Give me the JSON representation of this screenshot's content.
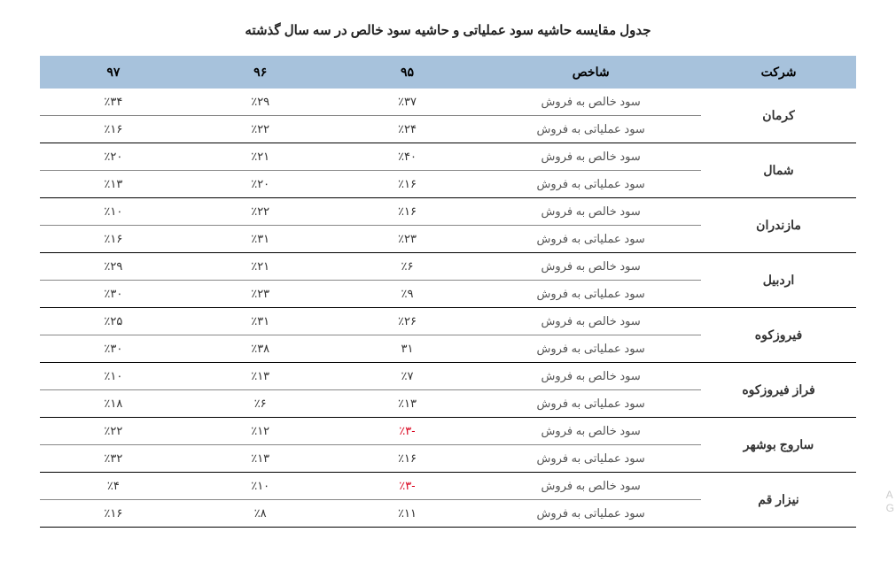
{
  "title": "جدول مقایسه حاشیه سود عملیاتی و حاشیه سود خالص در سه سال گذشته",
  "columns": {
    "company": "شرکت",
    "metric": "شاخص",
    "y95": "۹۵",
    "y96": "۹۶",
    "y97": "۹۷"
  },
  "metrics": {
    "net": "سود خالص به فروش",
    "op": "سود عملیاتی به فروش"
  },
  "companies": [
    {
      "name": "کرمان",
      "rows": [
        {
          "metric_key": "net",
          "y95": "٪۳۷",
          "y96": "٪۲۹",
          "y97": "٪۳۴"
        },
        {
          "metric_key": "op",
          "y95": "٪۲۴",
          "y96": "٪۲۲",
          "y97": "٪۱۶"
        }
      ]
    },
    {
      "name": "شمال",
      "rows": [
        {
          "metric_key": "net",
          "y95": "٪۴۰",
          "y96": "٪۲۱",
          "y97": "٪۲۰"
        },
        {
          "metric_key": "op",
          "y95": "٪۱۶",
          "y96": "٪۲۰",
          "y97": "٪۱۳"
        }
      ]
    },
    {
      "name": "مازندران",
      "rows": [
        {
          "metric_key": "net",
          "y95": "٪۱۶",
          "y96": "٪۲۲",
          "y97": "٪۱۰"
        },
        {
          "metric_key": "op",
          "y95": "٪۲۳",
          "y96": "٪۳۱",
          "y97": "٪۱۶"
        }
      ]
    },
    {
      "name": "اردبیل",
      "rows": [
        {
          "metric_key": "net",
          "y95": "٪۶",
          "y96": "٪۲۱",
          "y97": "٪۲۹"
        },
        {
          "metric_key": "op",
          "y95": "٪۹",
          "y96": "٪۲۳",
          "y97": "٪۳۰"
        }
      ]
    },
    {
      "name": "فیروزکوه",
      "rows": [
        {
          "metric_key": "net",
          "y95": "٪۲۶",
          "y96": "٪۳۱",
          "y97": "٪۲۵"
        },
        {
          "metric_key": "op",
          "y95": "۳۱",
          "y96": "٪۳۸",
          "y97": "٪۳۰"
        }
      ]
    },
    {
      "name": "فراز فیروزکوه",
      "rows": [
        {
          "metric_key": "net",
          "y95": "٪۷",
          "y96": "٪۱۳",
          "y97": "٪۱۰"
        },
        {
          "metric_key": "op",
          "y95": "٪۱۳",
          "y96": "٪۶",
          "y97": "٪۱۸"
        }
      ]
    },
    {
      "name": "ساروج بوشهر",
      "rows": [
        {
          "metric_key": "net",
          "y95": "-٪۳",
          "y95_neg": true,
          "y96": "٪۱۲",
          "y97": "٪۲۲"
        },
        {
          "metric_key": "op",
          "y95": "٪۱۶",
          "y96": "٪۱۳",
          "y97": "٪۳۲"
        }
      ]
    },
    {
      "name": "نیزار قم",
      "rows": [
        {
          "metric_key": "net",
          "y95": "-٪۳",
          "y95_neg": true,
          "y96": "٪۱۰",
          "y97": "٪۴"
        },
        {
          "metric_key": "op",
          "y95": "٪۱۱",
          "y96": "٪۸",
          "y97": "٪۱۶"
        }
      ]
    }
  ],
  "corner": {
    "line1": "A",
    "line2": "G"
  },
  "colors": {
    "header_bg": "#a7c2dc",
    "row_border": "#888888",
    "group_border": "#000000",
    "negative": "#d9001b",
    "text": "#333333",
    "background": "#ffffff"
  }
}
